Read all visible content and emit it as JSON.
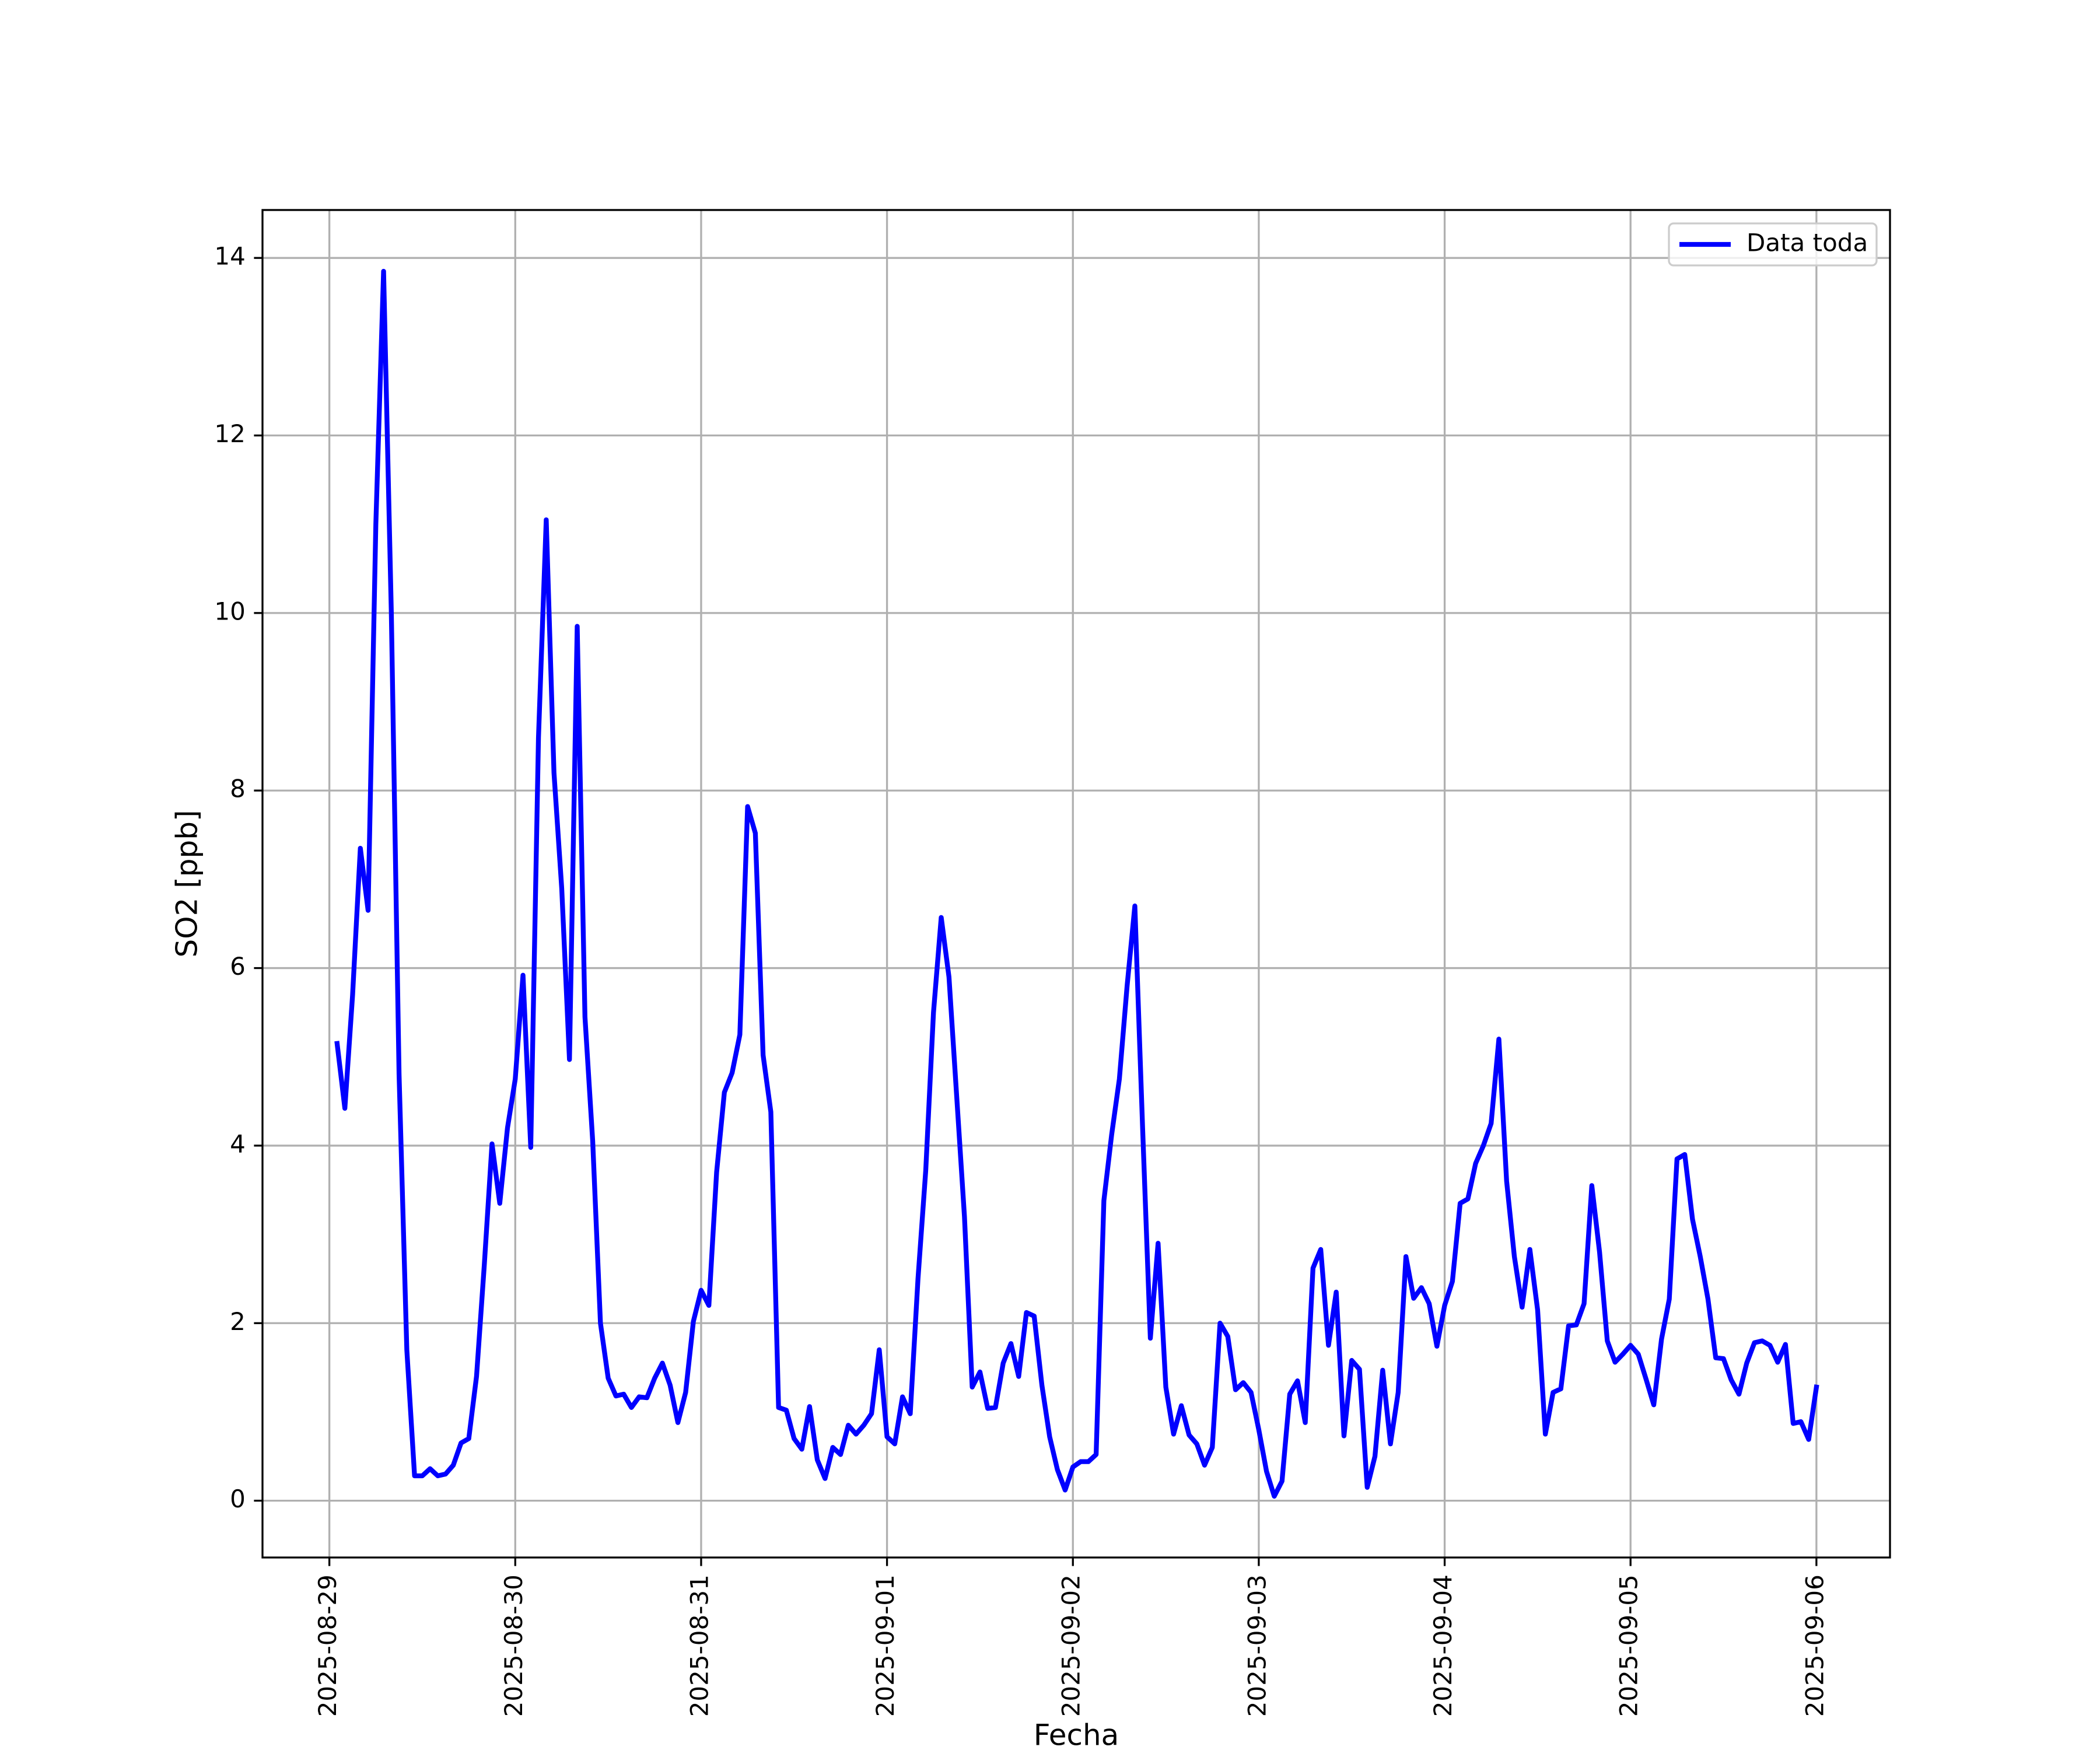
{
  "chart_data": {
    "type": "line",
    "xlabel": "Fecha",
    "ylabel": "SO2 [ppb]",
    "xlim": [
      "2025-08-28 15:22",
      "2025-09-06 09:30"
    ],
    "xticks": [
      "2025-08-29",
      "2025-08-30",
      "2025-08-31",
      "2025-09-01",
      "2025-09-02",
      "2025-09-03",
      "2025-09-04",
      "2025-09-05",
      "2025-09-06"
    ],
    "ylim": [
      -0.64,
      14.54
    ],
    "yticks": [
      0,
      2,
      4,
      6,
      8,
      10,
      12,
      14
    ],
    "grid": true,
    "legend": "upper right",
    "x": [
      "2025-08-29 01:00",
      "2025-08-29 02:00",
      "2025-08-29 03:00",
      "2025-08-29 04:00",
      "2025-08-29 05:00",
      "2025-08-29 06:00",
      "2025-08-29 07:00",
      "2025-08-29 08:00",
      "2025-08-29 09:00",
      "2025-08-29 10:00",
      "2025-08-29 11:00",
      "2025-08-29 12:00",
      "2025-08-29 13:00",
      "2025-08-29 14:00",
      "2025-08-29 15:00",
      "2025-08-29 16:00",
      "2025-08-29 17:00",
      "2025-08-29 18:00",
      "2025-08-29 19:00",
      "2025-08-29 20:00",
      "2025-08-29 21:00",
      "2025-08-29 22:00",
      "2025-08-29 23:00",
      "2025-08-30 00:00",
      "2025-08-30 01:00",
      "2025-08-30 02:00",
      "2025-08-30 03:00",
      "2025-08-30 04:00",
      "2025-08-30 05:00",
      "2025-08-30 06:00",
      "2025-08-30 07:00",
      "2025-08-30 08:00",
      "2025-08-30 09:00",
      "2025-08-30 10:00",
      "2025-08-30 11:00",
      "2025-08-30 12:00",
      "2025-08-30 13:00",
      "2025-08-30 14:00",
      "2025-08-30 15:00",
      "2025-08-30 16:00",
      "2025-08-30 17:00",
      "2025-08-30 18:00",
      "2025-08-30 19:00",
      "2025-08-30 20:00",
      "2025-08-30 21:00",
      "2025-08-30 22:00",
      "2025-08-30 23:00",
      "2025-08-31 00:00",
      "2025-08-31 01:00",
      "2025-08-31 02:00",
      "2025-08-31 03:00",
      "2025-08-31 04:00",
      "2025-08-31 05:00",
      "2025-08-31 06:00",
      "2025-08-31 07:00",
      "2025-08-31 08:00",
      "2025-08-31 09:00",
      "2025-08-31 10:00",
      "2025-08-31 11:00",
      "2025-08-31 12:00",
      "2025-08-31 13:00",
      "2025-08-31 14:00",
      "2025-08-31 15:00",
      "2025-08-31 16:00",
      "2025-08-31 17:00",
      "2025-08-31 18:00",
      "2025-08-31 19:00",
      "2025-08-31 20:00",
      "2025-08-31 21:00",
      "2025-08-31 22:00",
      "2025-08-31 23:00",
      "2025-09-01 00:00",
      "2025-09-01 01:00",
      "2025-09-01 02:00",
      "2025-09-01 03:00",
      "2025-09-01 04:00",
      "2025-09-01 05:00",
      "2025-09-01 06:00",
      "2025-09-01 07:00",
      "2025-09-01 08:00",
      "2025-09-01 09:00",
      "2025-09-01 10:00",
      "2025-09-01 11:00",
      "2025-09-01 12:00",
      "2025-09-01 13:00",
      "2025-09-01 14:00",
      "2025-09-01 15:00",
      "2025-09-01 16:00",
      "2025-09-01 17:00",
      "2025-09-01 18:00",
      "2025-09-01 19:00",
      "2025-09-01 20:00",
      "2025-09-01 21:00",
      "2025-09-01 22:00",
      "2025-09-01 23:00",
      "2025-09-02 00:00",
      "2025-09-02 01:00",
      "2025-09-02 02:00",
      "2025-09-02 03:00",
      "2025-09-02 04:00",
      "2025-09-02 05:00",
      "2025-09-02 06:00",
      "2025-09-02 07:00",
      "2025-09-02 08:00",
      "2025-09-02 09:00",
      "2025-09-02 10:00",
      "2025-09-02 11:00",
      "2025-09-02 12:00",
      "2025-09-02 13:00",
      "2025-09-02 14:00",
      "2025-09-02 15:00",
      "2025-09-02 16:00",
      "2025-09-02 17:00",
      "2025-09-02 18:00",
      "2025-09-02 19:00",
      "2025-09-02 20:00",
      "2025-09-02 21:00",
      "2025-09-02 22:00",
      "2025-09-02 23:00",
      "2025-09-03 00:00",
      "2025-09-03 01:00",
      "2025-09-03 02:00",
      "2025-09-03 03:00",
      "2025-09-03 04:00",
      "2025-09-03 05:00",
      "2025-09-03 06:00",
      "2025-09-03 07:00",
      "2025-09-03 08:00",
      "2025-09-03 09:00",
      "2025-09-03 10:00",
      "2025-09-03 11:00",
      "2025-09-03 12:00",
      "2025-09-03 13:00",
      "2025-09-03 14:00",
      "2025-09-03 15:00",
      "2025-09-03 16:00",
      "2025-09-03 17:00",
      "2025-09-03 18:00",
      "2025-09-03 19:00",
      "2025-09-03 20:00",
      "2025-09-03 21:00",
      "2025-09-03 22:00",
      "2025-09-03 23:00",
      "2025-09-04 00:00",
      "2025-09-04 01:00",
      "2025-09-04 02:00",
      "2025-09-04 03:00",
      "2025-09-04 04:00",
      "2025-09-04 05:00",
      "2025-09-04 06:00",
      "2025-09-04 07:00",
      "2025-09-04 08:00",
      "2025-09-04 09:00",
      "2025-09-04 10:00",
      "2025-09-04 11:00",
      "2025-09-04 12:00",
      "2025-09-04 13:00",
      "2025-09-04 14:00",
      "2025-09-04 15:00",
      "2025-09-04 16:00",
      "2025-09-04 17:00",
      "2025-09-04 18:00",
      "2025-09-04 19:00",
      "2025-09-04 20:00",
      "2025-09-04 21:00",
      "2025-09-04 22:00",
      "2025-09-04 23:00",
      "2025-09-05 00:00",
      "2025-09-05 01:00",
      "2025-09-05 02:00",
      "2025-09-05 03:00",
      "2025-09-05 04:00",
      "2025-09-05 05:00",
      "2025-09-05 06:00",
      "2025-09-05 07:00",
      "2025-09-05 08:00",
      "2025-09-05 09:00",
      "2025-09-05 10:00",
      "2025-09-05 11:00",
      "2025-09-05 12:00",
      "2025-09-05 13:00",
      "2025-09-05 14:00",
      "2025-09-05 15:00",
      "2025-09-05 16:00",
      "2025-09-05 17:00",
      "2025-09-05 18:00",
      "2025-09-05 19:00",
      "2025-09-05 20:00",
      "2025-09-05 21:00",
      "2025-09-05 22:00",
      "2025-09-05 23:00",
      "2025-09-06 00:00"
    ],
    "series": [
      {
        "name": "Data toda",
        "color": "#0000ff",
        "values": [
          5.15,
          4.42,
          5.7,
          7.35,
          6.65,
          11.0,
          13.85,
          10.0,
          4.8,
          1.7,
          0.28,
          0.28,
          0.36,
          0.28,
          0.3,
          0.4,
          0.65,
          0.7,
          1.4,
          2.65,
          4.02,
          3.35,
          4.2,
          4.75,
          5.92,
          3.98,
          8.6,
          11.05,
          8.2,
          6.9,
          4.97,
          9.85,
          5.45,
          4.05,
          2.0,
          1.38,
          1.18,
          1.2,
          1.05,
          1.17,
          1.16,
          1.38,
          1.55,
          1.3,
          0.88,
          1.22,
          2.02,
          2.37,
          2.2,
          3.7,
          4.6,
          4.82,
          5.25,
          7.82,
          7.52,
          5.02,
          4.38,
          1.05,
          1.02,
          0.7,
          0.58,
          1.06,
          0.46,
          0.25,
          0.6,
          0.52,
          0.85,
          0.75,
          0.85,
          0.98,
          1.7,
          0.72,
          0.64,
          1.17,
          0.98,
          2.5,
          3.72,
          5.5,
          6.57,
          5.9,
          4.55,
          3.2,
          1.28,
          1.45,
          1.04,
          1.05,
          1.55,
          1.77,
          1.4,
          2.12,
          2.08,
          1.3,
          0.72,
          0.35,
          0.12,
          0.38,
          0.44,
          0.44,
          0.52,
          3.38,
          4.12,
          4.75,
          5.8,
          6.7,
          4.2,
          1.83,
          2.9,
          1.28,
          0.75,
          1.07,
          0.74,
          0.64,
          0.4,
          0.6,
          2.0,
          1.85,
          1.25,
          1.33,
          1.22,
          0.8,
          0.33,
          0.05,
          0.22,
          1.2,
          1.35,
          0.88,
          2.62,
          2.83,
          1.75,
          2.35,
          0.73,
          1.58,
          1.48,
          0.15,
          0.5,
          1.47,
          0.64,
          1.22,
          2.75,
          2.28,
          2.4,
          2.22,
          1.74,
          2.2,
          2.47,
          3.35,
          3.4,
          3.8,
          4.0,
          4.25,
          5.2,
          3.6,
          2.75,
          2.18,
          2.83,
          2.15,
          0.75,
          1.22,
          1.26,
          1.97,
          1.98,
          2.22,
          3.55,
          2.8,
          1.8,
          1.56,
          1.65,
          1.75,
          1.65,
          1.37,
          1.08,
          1.82,
          2.27,
          3.85,
          3.9,
          3.17,
          2.75,
          2.27,
          1.61,
          1.6,
          1.36,
          1.2,
          1.55,
          1.78,
          1.8,
          1.75,
          1.56,
          1.76,
          0.87,
          0.89,
          0.69,
          1.28
        ]
      }
    ]
  }
}
